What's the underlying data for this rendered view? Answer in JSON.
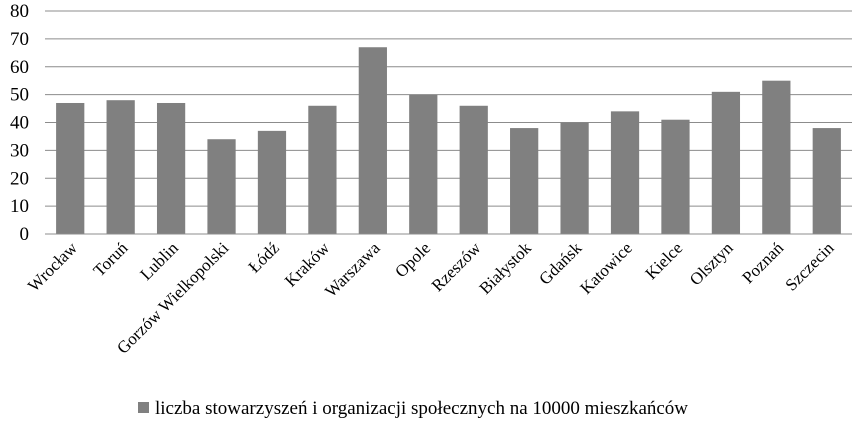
{
  "chart_data": {
    "type": "bar",
    "title": "",
    "xlabel": "",
    "ylabel": "",
    "ylim": [
      0,
      80
    ],
    "yticks": [
      0,
      10,
      20,
      30,
      40,
      50,
      60,
      70,
      80
    ],
    "grid": true,
    "legend_position": "bottom",
    "categories": [
      "Wrocław",
      "Toruń",
      "Lublin",
      "Gorzów Wielkopolski",
      "Łódź",
      "Kraków",
      "Warszawa",
      "Opole",
      "Rzeszów",
      "Białystok",
      "Gdańsk",
      "Katowice",
      "Kielce",
      "Olsztyn",
      "Poznań",
      "Szczecin"
    ],
    "series": [
      {
        "name": "liczba stowarzyszeń i organizacji społecznych na 10000 mieszkańców",
        "color": "#808080",
        "values": [
          47,
          48,
          47,
          34,
          37,
          46,
          67,
          50,
          46,
          38,
          40,
          44,
          41,
          51,
          55,
          38
        ]
      }
    ]
  }
}
